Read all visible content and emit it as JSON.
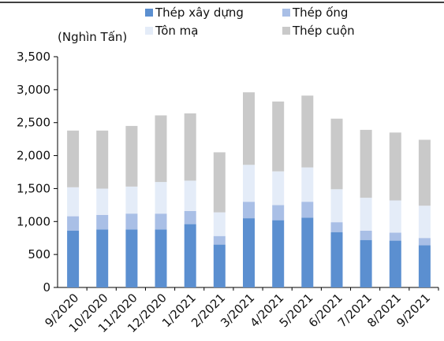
{
  "chart_data": {
    "type": "bar",
    "stacked": true,
    "unit_label": "(Nghìn Tấn)",
    "categories": [
      "9/2020",
      "10/2020",
      "11/2020",
      "12/2020",
      "1/2021",
      "2/2021",
      "3/2021",
      "4/2021",
      "5/2021",
      "6/2021",
      "7/2021",
      "8/2021",
      "9/2021"
    ],
    "series": [
      {
        "name": "Thép xây dựng",
        "color": "#5b8fd0",
        "values": [
          860,
          880,
          880,
          880,
          960,
          650,
          1050,
          1020,
          1060,
          840,
          720,
          710,
          640
        ]
      },
      {
        "name": "Thép ống",
        "color": "#a9bfe6",
        "values": [
          220,
          220,
          240,
          240,
          200,
          130,
          250,
          230,
          240,
          150,
          140,
          120,
          110
        ]
      },
      {
        "name": "Tôn mạ",
        "color": "#e4ecf8",
        "values": [
          440,
          400,
          410,
          480,
          460,
          360,
          560,
          510,
          520,
          500,
          500,
          490,
          490
        ]
      },
      {
        "name": "Thép cuộn",
        "color": "#c9c9c9",
        "values": [
          860,
          880,
          920,
          1010,
          1020,
          910,
          1100,
          1060,
          1090,
          1070,
          1030,
          1030,
          1000
        ]
      }
    ],
    "ylim": [
      0,
      3500
    ],
    "yticks": [
      "0",
      "500",
      "1,000",
      "1,500",
      "2,000",
      "2,500",
      "3,000",
      "3,500"
    ],
    "ytick_values": [
      0,
      500,
      1000,
      1500,
      2000,
      2500,
      3000,
      3500
    ],
    "grid": false,
    "legend_position": "top"
  }
}
